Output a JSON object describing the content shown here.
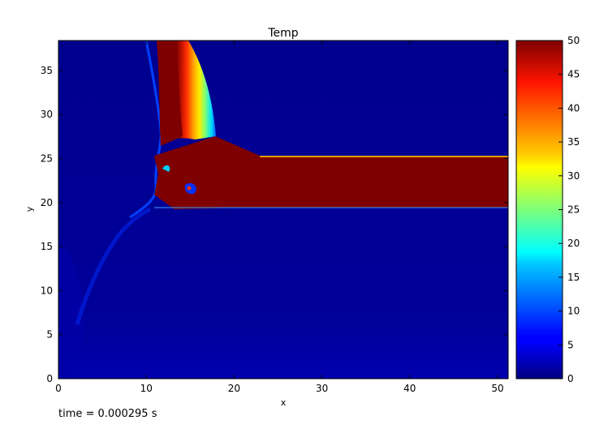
{
  "chart_data": {
    "type": "heatmap",
    "title": "Temp",
    "xlabel": "x",
    "ylabel": "y",
    "xlim": [
      0,
      51.2
    ],
    "ylim": [
      0,
      38.4
    ],
    "x_ticks": [
      0,
      10,
      20,
      30,
      40,
      50
    ],
    "y_ticks": [
      0,
      5,
      10,
      15,
      20,
      25,
      30,
      35
    ],
    "colorbar": {
      "colormap": "jet",
      "range": [
        0,
        50
      ],
      "ticks": [
        0,
        5,
        10,
        15,
        20,
        25,
        30,
        35,
        40,
        45,
        50
      ]
    },
    "field": {
      "background_value": 2,
      "hot_jet": {
        "x_start": 11,
        "x_end": 51.2,
        "y_bottom": 19.5,
        "y_top": 25.3,
        "value": 50
      },
      "vertical_plume": {
        "x_range": [
          11.5,
          18
        ],
        "y_range": [
          25.5,
          38.4
        ],
        "value": 50
      },
      "cold_front_value": 10
    },
    "grid": false
  },
  "caption": {
    "label": "time = ",
    "value": "0.000295",
    "unit": "s"
  }
}
